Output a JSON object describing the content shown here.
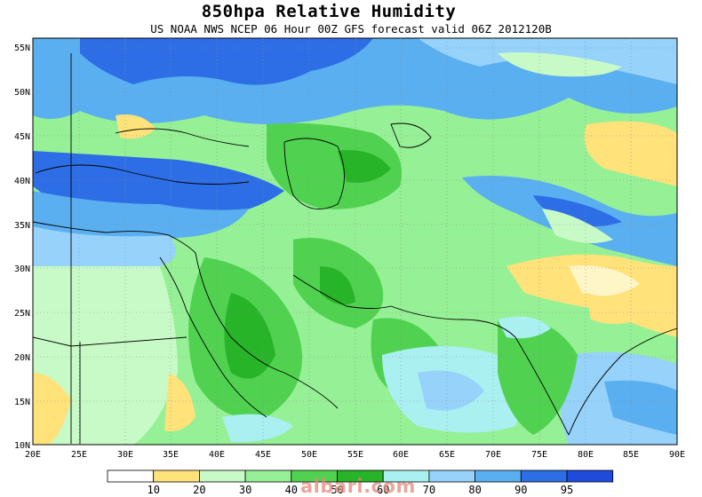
{
  "title": "850hpa Relative Humidity",
  "subtitle": "US NOAA NWS NCEP 06 Hour 00Z GFS forecast valid 06Z 2012120B",
  "lat_labels": [
    "55N",
    "50N",
    "45N",
    "40N",
    "35N",
    "30N",
    "25N",
    "20N",
    "15N",
    "10N"
  ],
  "lon_labels": [
    "20E",
    "25E",
    "30E",
    "35E",
    "40E",
    "45E",
    "50E",
    "55E",
    "60E",
    "65E",
    "70E",
    "75E",
    "80E",
    "85E",
    "90E"
  ],
  "legend": {
    "colors": [
      "#ffffff",
      "#ffe27a",
      "#c8fac8",
      "#96f096",
      "#50d250",
      "#28b428",
      "#aaf0f0",
      "#96d2fa",
      "#5aaff0",
      "#2d6ee6",
      "#1e4bdc"
    ],
    "labels": [
      "10",
      "20",
      "30",
      "40",
      "50",
      "60",
      "70",
      "80",
      "90",
      "95"
    ]
  },
  "watermark": "albari.com"
}
